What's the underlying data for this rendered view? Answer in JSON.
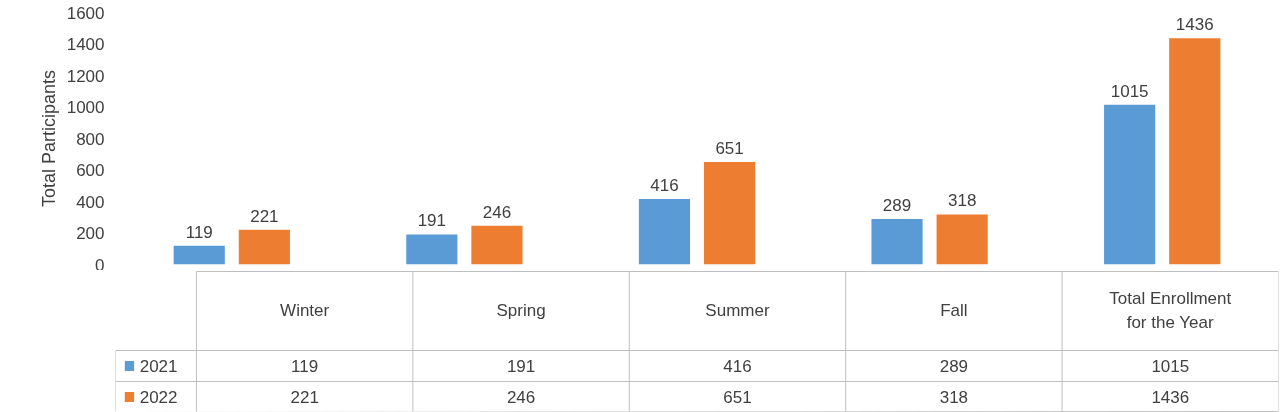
{
  "chart_data": {
    "type": "bar",
    "ylabel": "Total Participants",
    "categories": [
      "Winter",
      "Spring",
      "Summer",
      "Fall",
      "Total Enrollment for the Year"
    ],
    "series": [
      {
        "name": "2021",
        "color": "#5b9bd5",
        "values": [
          119,
          191,
          416,
          289,
          1015
        ],
        "value_labels": [
          "119",
          "191",
          "416",
          "289",
          "1015"
        ]
      },
      {
        "name": "2022",
        "color": "#ed7d31",
        "values": [
          221,
          246,
          651,
          318,
          1436
        ],
        "value_labels": [
          "221",
          "246",
          "651",
          "318",
          "1436"
        ]
      }
    ],
    "ylim": [
      0,
      1600
    ],
    "yticks": [
      0,
      200,
      400,
      600,
      800,
      1000,
      1200,
      1400,
      1600
    ],
    "grid": false,
    "legend": "bottom",
    "annotations": [
      "119",
      "191",
      "416",
      "289",
      "1015",
      "221",
      "246",
      "651",
      "318",
      "1436"
    ]
  }
}
